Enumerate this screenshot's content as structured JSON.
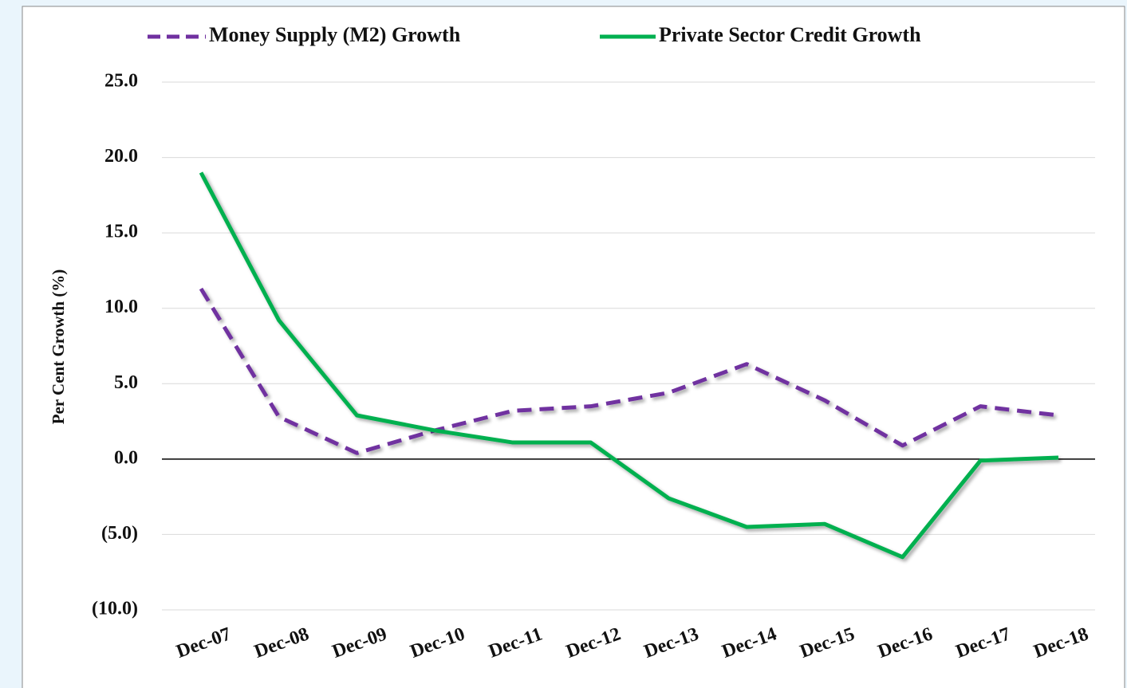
{
  "chart_data": {
    "type": "line",
    "y_label": "Per Cent Growth (%)",
    "categories": [
      "Dec-07",
      "Dec-08",
      "Dec-09",
      "Dec-10",
      "Dec-11",
      "Dec-12",
      "Dec-13",
      "Dec-14",
      "Dec-15",
      "Dec-16",
      "Dec-17",
      "Dec-18"
    ],
    "series": [
      {
        "name": "Money Supply (M2) Growth",
        "color": "#7030a0",
        "dash": true,
        "values": [
          11.3,
          2.8,
          0.4,
          1.9,
          3.2,
          3.5,
          4.4,
          6.3,
          3.9,
          0.9,
          3.5,
          2.9
        ]
      },
      {
        "name": "Private Sector Credit Growth",
        "color": "#00b050",
        "dash": false,
        "values": [
          19.0,
          9.2,
          2.9,
          1.9,
          1.1,
          1.1,
          -2.6,
          -4.5,
          -4.3,
          -6.5,
          -0.1,
          0.1
        ]
      }
    ],
    "ylim": [
      -10,
      25
    ],
    "yticks": [
      {
        "value": -10,
        "label": "(10.0)"
      },
      {
        "value": -5,
        "label": "(5.0)"
      },
      {
        "value": 0,
        "label": "0.0"
      },
      {
        "value": 5,
        "label": "5.0"
      },
      {
        "value": 10,
        "label": "10.0"
      },
      {
        "value": 15,
        "label": "15.0"
      },
      {
        "value": 20,
        "label": "20.0"
      },
      {
        "value": 25,
        "label": "25.0"
      }
    ],
    "grid": true,
    "legend": "top"
  }
}
